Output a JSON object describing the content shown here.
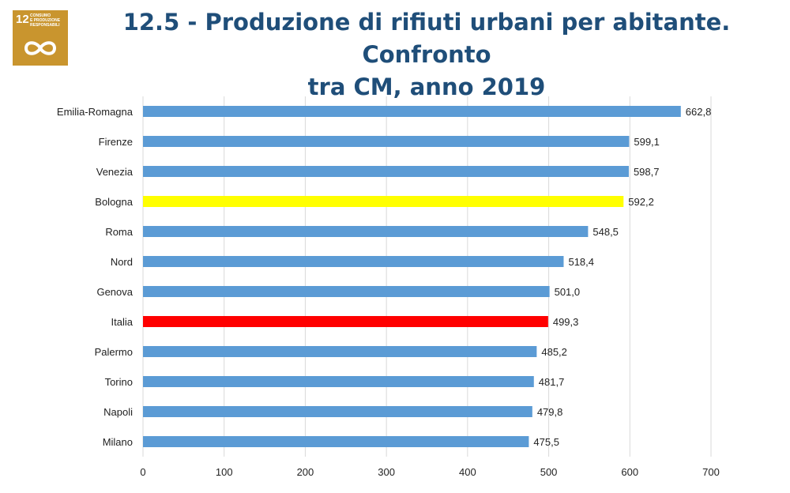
{
  "badge": {
    "number": "12",
    "text": "CONSUMO\nE PRODUZIONE\nRESPONSABILI",
    "icon": "infinity-icon",
    "color": "#c9952e"
  },
  "title": {
    "line1": "12.5 - Produzione di rifiuti urbani per abitante. Confronto",
    "line2": "tra CM, anno 2019"
  },
  "chart_data": {
    "type": "bar",
    "orientation": "horizontal",
    "categories": [
      "Emilia-Romagna",
      "Firenze",
      "Venezia",
      "Bologna",
      "Roma",
      "Nord",
      "Genova",
      "Italia",
      "Palermo",
      "Torino",
      "Napoli",
      "Milano"
    ],
    "values": [
      662.8,
      599.1,
      598.7,
      592.2,
      548.5,
      518.4,
      501.0,
      499.3,
      485.2,
      481.7,
      479.8,
      475.5
    ],
    "value_labels": [
      "662,8",
      "599,1",
      "598,7",
      "592,2",
      "548,5",
      "518,4",
      "501,0",
      "499,3",
      "485,2",
      "481,7",
      "479,8",
      "475,5"
    ],
    "colors": [
      "#5b9bd5",
      "#5b9bd5",
      "#5b9bd5",
      "#ffff00",
      "#5b9bd5",
      "#5b9bd5",
      "#5b9bd5",
      "#ff0000",
      "#5b9bd5",
      "#5b9bd5",
      "#5b9bd5",
      "#5b9bd5"
    ],
    "xlim": [
      0,
      700
    ],
    "xticks": [
      0,
      100,
      200,
      300,
      400,
      500,
      600,
      700
    ],
    "grid": "vertical",
    "legend": "none",
    "xlabel": "",
    "ylabel": ""
  }
}
